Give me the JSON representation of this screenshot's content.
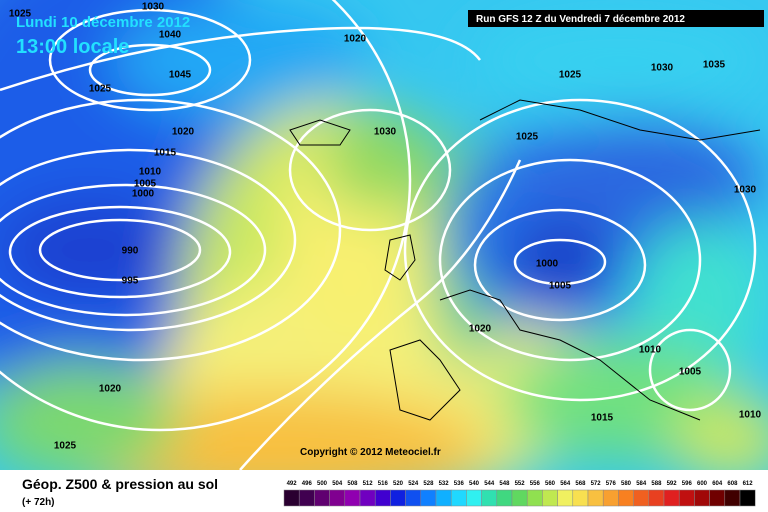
{
  "header": {
    "date": "Lundi 10 décembre 2012",
    "time": "13:00 locale",
    "run": "Run GFS 12 Z du Vendredi 7 décembre 2012"
  },
  "isobar_labels": [
    "1025",
    "1030",
    "1040",
    "1045",
    "1025",
    "1020",
    "1015",
    "1010",
    "1005",
    "1000",
    "990",
    "995",
    "1020",
    "1025",
    "1020",
    "1030",
    "1025",
    "1030",
    "1035",
    "1025",
    "1030",
    "1000",
    "1005",
    "1020",
    "1010",
    "1005",
    "1015",
    "1010"
  ],
  "copyright": "Copyright © 2012 Meteociel.fr",
  "footer": {
    "title": "Géop. Z500 & pression au sol",
    "lead": "(+ 72h)"
  },
  "scale": [
    "492",
    "496",
    "500",
    "504",
    "508",
    "512",
    "516",
    "520",
    "524",
    "528",
    "532",
    "536",
    "540",
    "544",
    "548",
    "552",
    "556",
    "560",
    "564",
    "568",
    "572",
    "576",
    "580",
    "584",
    "588",
    "592",
    "596",
    "600",
    "604",
    "608",
    "612"
  ]
}
